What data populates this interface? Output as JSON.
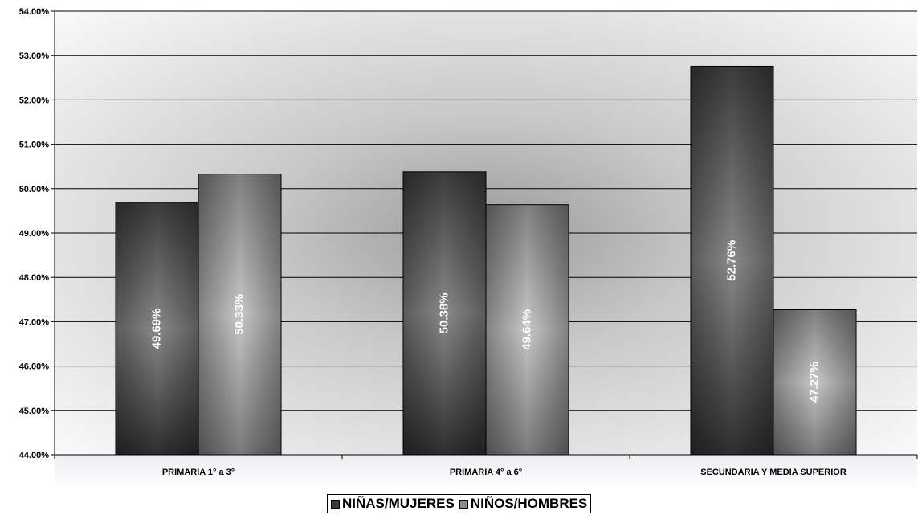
{
  "chart_data": {
    "type": "bar",
    "categories": [
      "PRIMARIA 1° a 3°",
      "PRIMARIA 4° a 6°",
      "SECUNDARIA Y MEDIA SUPERIOR"
    ],
    "series": [
      {
        "name": "NIÑAS/MUJERES",
        "values": [
          49.69,
          50.38,
          52.76
        ],
        "labels": [
          "49.69%",
          "50.38%",
          "52.76%"
        ],
        "color": "#3a3a3a"
      },
      {
        "name": "NIÑOS/HOMBRES",
        "values": [
          50.33,
          49.64,
          47.27
        ],
        "labels": [
          "50.33%",
          "49.64%",
          "47.27%"
        ],
        "color": "#8c8c8c"
      }
    ],
    "ylim": [
      44,
      54
    ],
    "yticks": [
      44,
      45,
      46,
      47,
      48,
      49,
      50,
      51,
      52,
      53,
      54
    ],
    "ytick_labels": [
      "44.00%",
      "45.00%",
      "46.00%",
      "47.00%",
      "48.00%",
      "49.00%",
      "50.00%",
      "51.00%",
      "52.00%",
      "53.00%",
      "54.00%"
    ],
    "grid": true,
    "legend_position": "bottom",
    "title": "",
    "xlabel": "",
    "ylabel": ""
  }
}
